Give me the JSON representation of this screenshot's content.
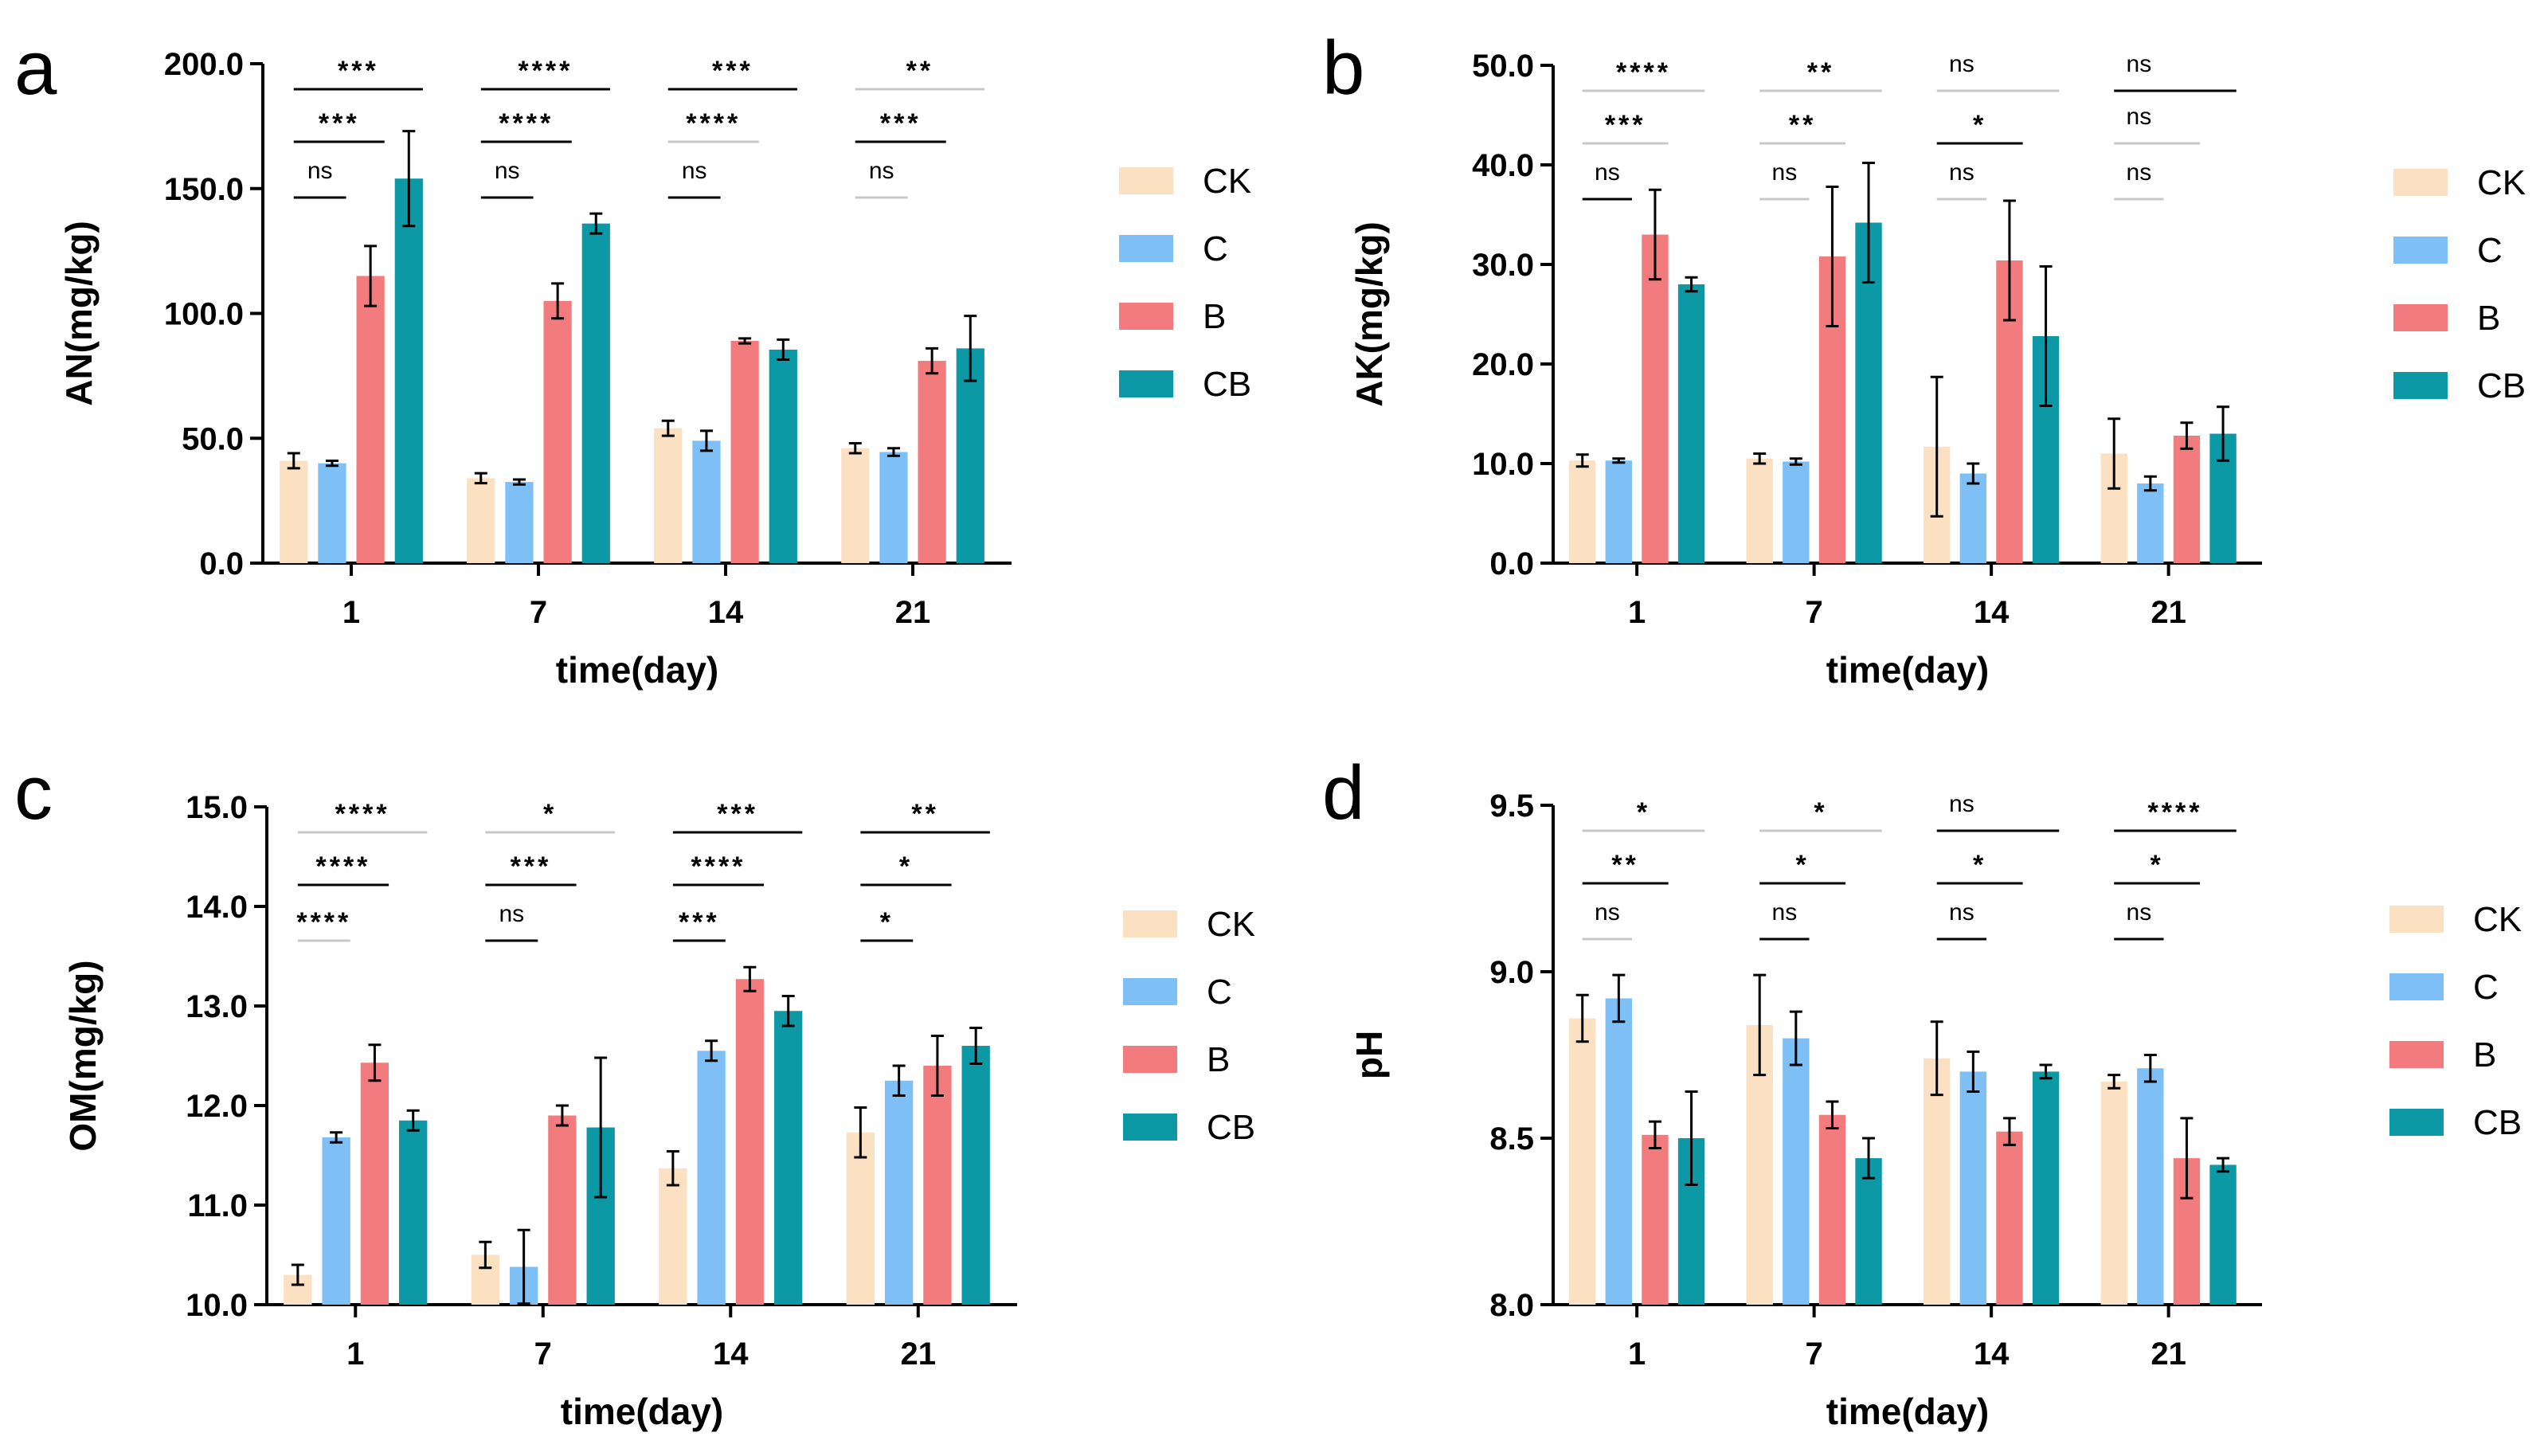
{
  "colors": {
    "CK": "#fbe1c2",
    "C": "#7ec0f6",
    "B": "#f27b7d",
    "CB": "#0d98a6",
    "axis": "#000000",
    "sig_line_dark": "#000000",
    "sig_line_light": "#c8c8c8"
  },
  "chart_data": [
    {
      "type": "bar",
      "panel": "a",
      "title": "",
      "xlabel": "time(day)",
      "ylabel": "AN(mg/kg)",
      "categories": [
        "1",
        "7",
        "14",
        "21"
      ],
      "ylim": [
        0,
        200
      ],
      "yticks": [
        0,
        50,
        100,
        150,
        200
      ],
      "ytick_labels": [
        "0.0",
        "50.0",
        "100.0",
        "150.0",
        "200.0"
      ],
      "legend_position": "right",
      "series": [
        {
          "name": "CK",
          "values": [
            41,
            34,
            54,
            46
          ],
          "errors": [
            3,
            2,
            3,
            2
          ]
        },
        {
          "name": "C",
          "values": [
            40,
            32.5,
            49,
            44.5
          ],
          "errors": [
            1,
            1,
            4,
            1.5
          ]
        },
        {
          "name": "B",
          "values": [
            115,
            105,
            89,
            81
          ],
          "errors": [
            12,
            7,
            1,
            5
          ]
        },
        {
          "name": "CB",
          "values": [
            154,
            136,
            85.5,
            86
          ],
          "errors": [
            19,
            4,
            4,
            13
          ]
        }
      ],
      "significance": [
        [
          {
            "label": "***",
            "dark": true,
            "span": "full"
          },
          {
            "label": "***",
            "dark": true,
            "span": "mid"
          },
          {
            "label": "ns",
            "dark": true,
            "span": "short"
          }
        ],
        [
          {
            "label": "****",
            "dark": true,
            "span": "full"
          },
          {
            "label": "****",
            "dark": true,
            "span": "mid"
          },
          {
            "label": "ns",
            "dark": true,
            "span": "short"
          }
        ],
        [
          {
            "label": "***",
            "dark": true,
            "span": "full"
          },
          {
            "label": "****",
            "dark": false,
            "span": "mid"
          },
          {
            "label": "ns",
            "dark": true,
            "span": "short"
          }
        ],
        [
          {
            "label": "**",
            "dark": false,
            "span": "full"
          },
          {
            "label": "***",
            "dark": true,
            "span": "mid"
          },
          {
            "label": "ns",
            "dark": false,
            "span": "short"
          }
        ]
      ]
    },
    {
      "type": "bar",
      "panel": "b",
      "title": "",
      "xlabel": "time(day)",
      "ylabel": "AK(mg/kg)",
      "categories": [
        "1",
        "7",
        "14",
        "21"
      ],
      "ylim": [
        0,
        50
      ],
      "yticks": [
        0,
        10,
        20,
        30,
        40,
        50
      ],
      "ytick_labels": [
        "0.0",
        "10.0",
        "20.0",
        "30.0",
        "40.0",
        "50.0"
      ],
      "legend_position": "right",
      "series": [
        {
          "name": "CK",
          "values": [
            10.3,
            10.5,
            11.7,
            11
          ],
          "errors": [
            0.6,
            0.5,
            7,
            3.5
          ]
        },
        {
          "name": "C",
          "values": [
            10.3,
            10.2,
            9,
            8
          ],
          "errors": [
            0.2,
            0.3,
            1,
            0.7
          ]
        },
        {
          "name": "B",
          "values": [
            33,
            30.8,
            30.4,
            12.8
          ],
          "errors": [
            4.5,
            7,
            6,
            1.3
          ]
        },
        {
          "name": "CB",
          "values": [
            28,
            34.2,
            22.8,
            13
          ],
          "errors": [
            0.7,
            6,
            7,
            2.7
          ]
        }
      ],
      "significance": [
        [
          {
            "label": "****",
            "dark": false,
            "span": "full"
          },
          {
            "label": "***",
            "dark": false,
            "span": "mid"
          },
          {
            "label": "ns",
            "dark": true,
            "span": "short"
          }
        ],
        [
          {
            "label": "**",
            "dark": false,
            "span": "full"
          },
          {
            "label": "**",
            "dark": false,
            "span": "mid"
          },
          {
            "label": "ns",
            "dark": false,
            "span": "short"
          }
        ],
        [
          {
            "label": "ns",
            "dark": false,
            "span": "full"
          },
          {
            "label": "*",
            "dark": true,
            "span": "mid"
          },
          {
            "label": "ns",
            "dark": false,
            "span": "short"
          }
        ],
        [
          {
            "label": "ns",
            "dark": true,
            "span": "full"
          },
          {
            "label": "ns",
            "dark": false,
            "span": "mid"
          },
          {
            "label": "ns",
            "dark": false,
            "span": "short"
          }
        ]
      ]
    },
    {
      "type": "bar",
      "panel": "c",
      "title": "",
      "xlabel": "time(day)",
      "ylabel": "OM(mg/kg)",
      "categories": [
        "1",
        "7",
        "14",
        "21"
      ],
      "ylim": [
        10,
        15
      ],
      "yticks": [
        10,
        11,
        12,
        13,
        14,
        15
      ],
      "ytick_labels": [
        "10.0",
        "11.0",
        "12.0",
        "13.0",
        "14.0",
        "15.0"
      ],
      "legend_position": "right",
      "series": [
        {
          "name": "CK",
          "values": [
            10.3,
            10.5,
            11.37,
            11.73
          ],
          "errors": [
            0.1,
            0.13,
            0.17,
            0.25
          ]
        },
        {
          "name": "C",
          "values": [
            11.68,
            10.38,
            12.55,
            12.25
          ],
          "errors": [
            0.05,
            0.37,
            0.1,
            0.15
          ]
        },
        {
          "name": "B",
          "values": [
            12.43,
            11.9,
            13.27,
            12.4
          ],
          "errors": [
            0.18,
            0.1,
            0.12,
            0.3
          ]
        },
        {
          "name": "CB",
          "values": [
            11.85,
            11.78,
            12.95,
            12.6
          ],
          "errors": [
            0.1,
            0.7,
            0.15,
            0.18
          ]
        }
      ],
      "significance": [
        [
          {
            "label": "****",
            "dark": false,
            "span": "full"
          },
          {
            "label": "****",
            "dark": true,
            "span": "mid"
          },
          {
            "label": "****",
            "dark": false,
            "span": "short"
          }
        ],
        [
          {
            "label": "*",
            "dark": false,
            "span": "full"
          },
          {
            "label": "***",
            "dark": true,
            "span": "mid"
          },
          {
            "label": "ns",
            "dark": true,
            "span": "short"
          }
        ],
        [
          {
            "label": "***",
            "dark": true,
            "span": "full"
          },
          {
            "label": "****",
            "dark": true,
            "span": "mid"
          },
          {
            "label": "***",
            "dark": true,
            "span": "short"
          }
        ],
        [
          {
            "label": "**",
            "dark": true,
            "span": "full"
          },
          {
            "label": "*",
            "dark": true,
            "span": "mid"
          },
          {
            "label": "*",
            "dark": true,
            "span": "short"
          }
        ]
      ]
    },
    {
      "type": "bar",
      "panel": "d",
      "title": "",
      "xlabel": "time(day)",
      "ylabel": "pH",
      "categories": [
        "1",
        "7",
        "14",
        "21"
      ],
      "ylim": [
        8,
        9.5
      ],
      "yticks": [
        8.0,
        8.5,
        9.0,
        9.5
      ],
      "ytick_labels": [
        "8.0",
        "8.5",
        "9.0",
        "9.5"
      ],
      "legend_position": "right",
      "series": [
        {
          "name": "CK",
          "values": [
            8.86,
            8.84,
            8.74,
            8.67
          ],
          "errors": [
            0.07,
            0.15,
            0.11,
            0.02
          ]
        },
        {
          "name": "C",
          "values": [
            8.92,
            8.8,
            8.7,
            8.71
          ],
          "errors": [
            0.07,
            0.08,
            0.06,
            0.04
          ]
        },
        {
          "name": "B",
          "values": [
            8.51,
            8.57,
            8.52,
            8.44
          ],
          "errors": [
            0.04,
            0.04,
            0.04,
            0.12
          ]
        },
        {
          "name": "CB",
          "values": [
            8.5,
            8.44,
            8.7,
            8.42
          ],
          "errors": [
            0.14,
            0.06,
            0.02,
            0.02
          ]
        }
      ],
      "significance": [
        [
          {
            "label": "*",
            "dark": false,
            "span": "full"
          },
          {
            "label": "**",
            "dark": true,
            "span": "mid"
          },
          {
            "label": "ns",
            "dark": false,
            "span": "short"
          }
        ],
        [
          {
            "label": "*",
            "dark": false,
            "span": "full"
          },
          {
            "label": "*",
            "dark": true,
            "span": "mid"
          },
          {
            "label": "ns",
            "dark": true,
            "span": "short"
          }
        ],
        [
          {
            "label": "ns",
            "dark": true,
            "span": "full"
          },
          {
            "label": "*",
            "dark": true,
            "span": "mid"
          },
          {
            "label": "ns",
            "dark": true,
            "span": "short"
          }
        ],
        [
          {
            "label": "****",
            "dark": true,
            "span": "full"
          },
          {
            "label": "*",
            "dark": true,
            "span": "mid"
          },
          {
            "label": "ns",
            "dark": true,
            "span": "short"
          }
        ]
      ]
    }
  ]
}
